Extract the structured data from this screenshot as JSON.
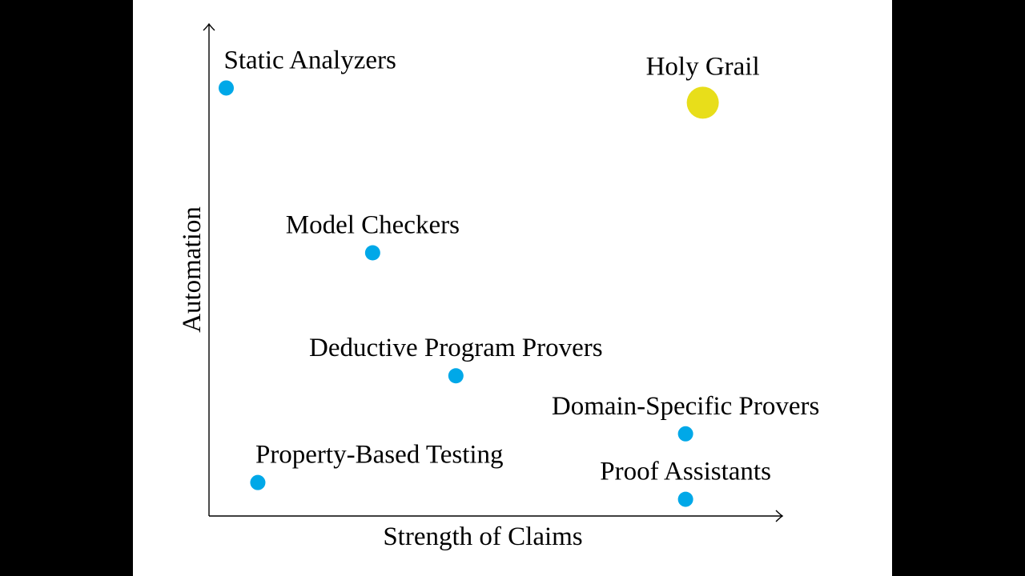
{
  "chart_data": {
    "type": "scatter",
    "title": "",
    "xlabel": "Strength of Claims",
    "ylabel": "Automation",
    "xlim": [
      0,
      100
    ],
    "ylim": [
      0,
      100
    ],
    "grid": false,
    "ticks": false,
    "points": [
      {
        "label": "Static Analyzers",
        "x": 3,
        "y": 87,
        "color": "#00a8e8",
        "emphasis": false,
        "anchor": "start"
      },
      {
        "label": "Holy Grail",
        "x": 86,
        "y": 84,
        "color": "#e8de1a",
        "emphasis": true,
        "anchor": "middle"
      },
      {
        "label": "Model Checkers",
        "x": 28.5,
        "y": 53.5,
        "color": "#00a8e8",
        "emphasis": false,
        "anchor": "middle"
      },
      {
        "label": "Deductive Program Provers",
        "x": 43,
        "y": 28.5,
        "color": "#00a8e8",
        "emphasis": false,
        "anchor": "middle"
      },
      {
        "label": "Domain-Specific Provers",
        "x": 83,
        "y": 16.7,
        "color": "#00a8e8",
        "emphasis": false,
        "anchor": "middle"
      },
      {
        "label": "Property-Based Testing",
        "x": 8.5,
        "y": 6.8,
        "color": "#00a8e8",
        "emphasis": false,
        "anchor": "start"
      },
      {
        "label": "Proof Assistants",
        "x": 83,
        "y": 3.4,
        "color": "#00a8e8",
        "emphasis": false,
        "anchor": "middle"
      }
    ]
  }
}
